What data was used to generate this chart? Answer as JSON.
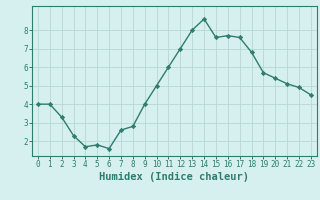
{
  "x": [
    0,
    1,
    2,
    3,
    4,
    5,
    6,
    7,
    8,
    9,
    10,
    11,
    12,
    13,
    14,
    15,
    16,
    17,
    18,
    19,
    20,
    21,
    22,
    23
  ],
  "y": [
    4.0,
    4.0,
    3.3,
    2.3,
    1.7,
    1.8,
    1.6,
    2.6,
    2.8,
    4.0,
    5.0,
    6.0,
    7.0,
    8.0,
    8.6,
    7.6,
    7.7,
    7.6,
    6.8,
    5.7,
    5.4,
    5.1,
    4.9,
    4.5
  ],
  "line_color": "#2e7d6e",
  "marker": "D",
  "marker_size": 2.2,
  "bg_color": "#d6f0ef",
  "grid_color": "#b8d8d4",
  "xlabel": "Humidex (Indice chaleur)",
  "ylim": [
    1.2,
    9.3
  ],
  "xlim": [
    -0.5,
    23.5
  ],
  "yticks": [
    2,
    3,
    4,
    5,
    6,
    7,
    8
  ],
  "xticks": [
    0,
    1,
    2,
    3,
    4,
    5,
    6,
    7,
    8,
    9,
    10,
    11,
    12,
    13,
    14,
    15,
    16,
    17,
    18,
    19,
    20,
    21,
    22,
    23
  ],
  "xtick_labels": [
    "0",
    "1",
    "2",
    "3",
    "4",
    "5",
    "6",
    "7",
    "8",
    "9",
    "10",
    "11",
    "12",
    "13",
    "14",
    "15",
    "16",
    "17",
    "18",
    "19",
    "20",
    "21",
    "22",
    "23"
  ],
  "tick_color": "#2e7d6e",
  "tick_fontsize": 5.5,
  "xlabel_fontsize": 7.5,
  "spine_color": "#2e7d6e",
  "linewidth": 1.0
}
